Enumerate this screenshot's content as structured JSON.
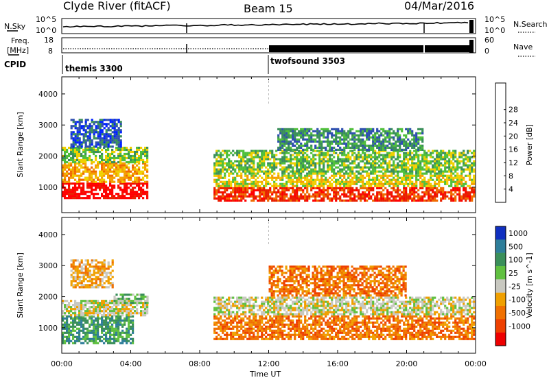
{
  "header": {
    "station": "Clyde River (fitACF)",
    "beam": "Beam 15",
    "date": "04/Mar/2016"
  },
  "noise_panel": {
    "left_label": "N.Sky",
    "left_ticks": [
      "10^5",
      "10^0"
    ],
    "right_label": "N.Search",
    "right_ticks": [
      "10^5",
      "10^0"
    ]
  },
  "freq_panel": {
    "left_label_1": "Freq.",
    "left_label_2": "[MHz]",
    "left_ticks": [
      "18",
      "8"
    ],
    "right_label": "Nave",
    "right_ticks": [
      "60",
      "0"
    ]
  },
  "cpid_panel": {
    "label": "CPID",
    "segments": [
      {
        "name": "themis 3300",
        "start_hour": 0.0
      },
      {
        "name": "twofsound 3503",
        "start_hour": 12.0
      }
    ]
  },
  "colors": {
    "power": [
      "#0022ff",
      "#2e4fb0",
      "#3a8f5a",
      "#4fbf3a",
      "#f0d000",
      "#f4a000",
      "#f06a00",
      "#e82000",
      "#ff0000"
    ],
    "velocity": [
      "#ee0000",
      "#ee4000",
      "#f07000",
      "#f0a000",
      "#c8c8c0",
      "#60c040",
      "#3a8f5a",
      "#2e7e9a",
      "#1030c0"
    ]
  },
  "chart_data": [
    {
      "type": "heatmap",
      "name": "power",
      "ylabel": "Slant Range [km]",
      "xlabel": "Time UT",
      "xlim": [
        0,
        24
      ],
      "ylim": [
        180,
        4550
      ],
      "x_ticks": [
        "00:00",
        "04:00",
        "08:00",
        "12:00",
        "16:00",
        "20:00",
        "00:00"
      ],
      "y_ticks": [
        1000,
        2000,
        3000,
        4000
      ],
      "colorbar_label": "Power [dB]",
      "colorbar_ticks": [
        4,
        8,
        12,
        16,
        20,
        24,
        28
      ],
      "bands": [
        {
          "t0": 0.0,
          "t1": 5.0,
          "r0": 600,
          "r1": 1150,
          "level": 8
        },
        {
          "t0": 0.0,
          "t1": 5.0,
          "r0": 1150,
          "r1": 1800,
          "level": 5
        },
        {
          "t0": 0.0,
          "t1": 5.0,
          "r0": 1800,
          "r1": 2300,
          "level": 3
        },
        {
          "t0": 0.5,
          "t1": 3.5,
          "r0": 2300,
          "r1": 3200,
          "level": 1
        },
        {
          "t0": 8.8,
          "t1": 24.0,
          "r0": 550,
          "r1": 1000,
          "level": 7
        },
        {
          "t0": 8.8,
          "t1": 24.0,
          "r0": 1000,
          "r1": 1400,
          "level": 4
        },
        {
          "t0": 8.8,
          "t1": 24.0,
          "r0": 1400,
          "r1": 2200,
          "level": 3
        },
        {
          "t0": 12.5,
          "t1": 21.0,
          "r0": 2200,
          "r1": 2900,
          "level": 2
        }
      ]
    },
    {
      "type": "heatmap",
      "name": "velocity",
      "ylabel": "Slant Range [km]",
      "xlabel": "Time UT",
      "xlim": [
        0,
        24
      ],
      "ylim": [
        180,
        4550
      ],
      "x_ticks": [
        "00:00",
        "04:00",
        "08:00",
        "12:00",
        "16:00",
        "20:00",
        "00:00"
      ],
      "y_ticks": [
        1000,
        2000,
        3000,
        4000
      ],
      "colorbar_label": "Velocity [m s^-1]",
      "colorbar_ticks": [
        "1000",
        "500",
        "100",
        "25",
        "-25",
        "-100",
        "-500",
        "-1000"
      ],
      "bands": [
        {
          "t0": 0.0,
          "t1": 4.2,
          "r0": 500,
          "r1": 1400,
          "level": 6
        },
        {
          "t0": 0.0,
          "t1": 5.0,
          "r0": 1400,
          "r1": 1900,
          "level": 4
        },
        {
          "t0": 3.0,
          "t1": 5.0,
          "r0": 1800,
          "r1": 2100,
          "level": 5
        },
        {
          "t0": 0.5,
          "t1": 3.0,
          "r0": 2300,
          "r1": 3200,
          "level": 3
        },
        {
          "t0": 8.8,
          "t1": 24.0,
          "r0": 600,
          "r1": 1400,
          "level": 2
        },
        {
          "t0": 8.8,
          "t1": 24.0,
          "r0": 1400,
          "r1": 2000,
          "level": 4
        },
        {
          "t0": 12.0,
          "t1": 20.0,
          "r0": 2000,
          "r1": 3000,
          "level": 2
        }
      ]
    }
  ]
}
